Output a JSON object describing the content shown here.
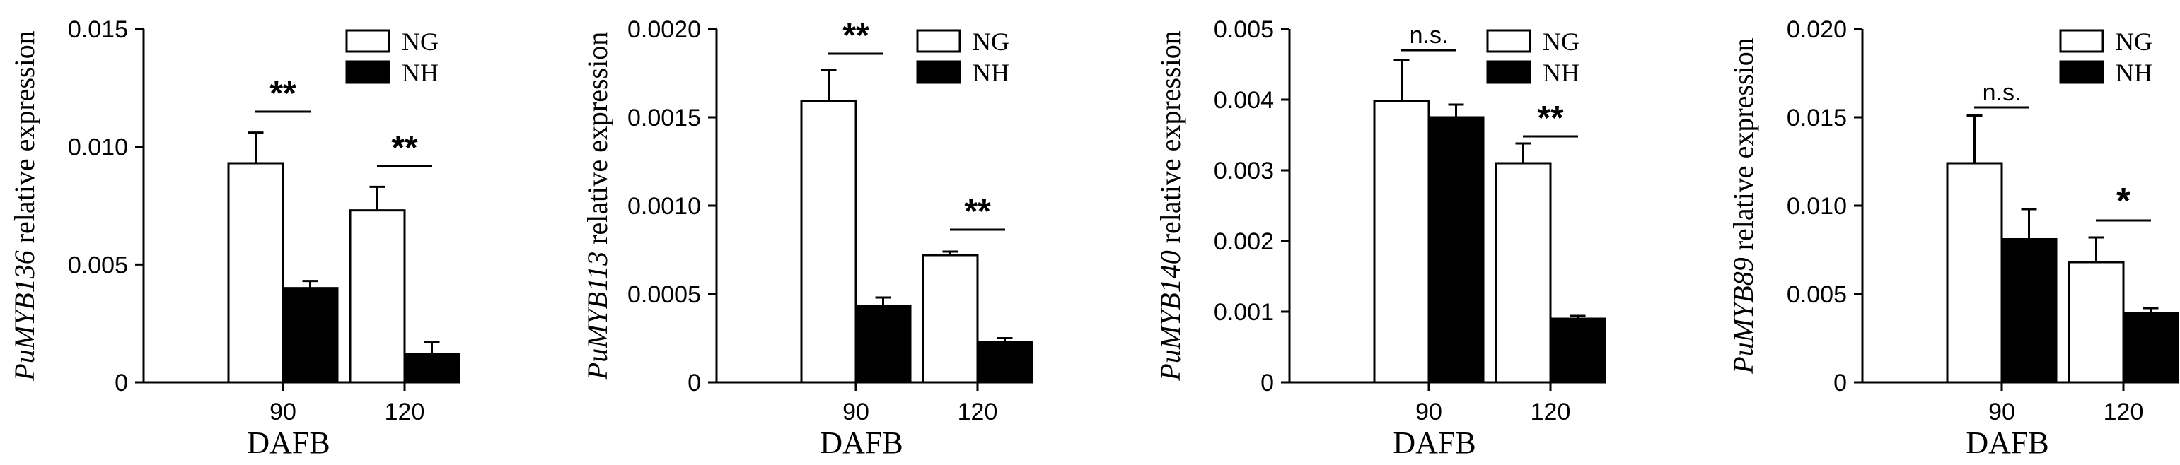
{
  "colors": {
    "NG": "#ffffff",
    "NH": "#000000",
    "stroke": "#000000"
  },
  "chart_data": [
    {
      "type": "bar",
      "ylabel_gene": "PuMYB136",
      "ylabel_rest": " relative expression",
      "xlabel": "DAFB",
      "categories": [
        "90",
        "120"
      ],
      "ylim": [
        0,
        0.015
      ],
      "yticks": [
        "0",
        "0.005",
        "0.010",
        "0.015"
      ],
      "legend_position": "top-right",
      "series": [
        {
          "name": "NG",
          "values": [
            0.0093,
            0.0073
          ],
          "errors": [
            0.0013,
            0.001
          ]
        },
        {
          "name": "NH",
          "values": [
            0.004,
            0.0012
          ],
          "errors": [
            0.0003,
            0.0005
          ]
        }
      ],
      "significance": [
        "**",
        "**"
      ]
    },
    {
      "type": "bar",
      "ylabel_gene": "PuMYB113",
      "ylabel_rest": " relative expression",
      "xlabel": "DAFB",
      "categories": [
        "90",
        "120"
      ],
      "ylim": [
        0,
        0.002
      ],
      "yticks": [
        "0",
        "0.0005",
        "0.0010",
        "0.0015",
        "0.0020"
      ],
      "legend_position": "top-right",
      "series": [
        {
          "name": "NG",
          "values": [
            0.00159,
            0.00072
          ],
          "errors": [
            0.00018,
            2e-05
          ]
        },
        {
          "name": "NH",
          "values": [
            0.00043,
            0.00023
          ],
          "errors": [
            5e-05,
            2e-05
          ]
        }
      ],
      "significance": [
        "**",
        "**"
      ]
    },
    {
      "type": "bar",
      "ylabel_gene": "PuMYB140",
      "ylabel_rest": " relative expression",
      "xlabel": "DAFB",
      "categories": [
        "90",
        "120"
      ],
      "ylim": [
        0,
        0.005
      ],
      "yticks": [
        "0",
        "0.001",
        "0.002",
        "0.003",
        "0.004",
        "0.005"
      ],
      "legend_position": "top-right",
      "series": [
        {
          "name": "NG",
          "values": [
            0.00398,
            0.0031
          ],
          "errors": [
            0.00058,
            0.00028
          ]
        },
        {
          "name": "NH",
          "values": [
            0.00375,
            0.0009
          ],
          "errors": [
            0.00018,
            4e-05
          ]
        }
      ],
      "significance": [
        "n.s.",
        "**"
      ]
    },
    {
      "type": "bar",
      "ylabel_gene": "PuMYB89",
      "ylabel_rest": " relative expression",
      "xlabel": "DAFB",
      "categories": [
        "90",
        "120"
      ],
      "ylim": [
        0,
        0.02
      ],
      "yticks": [
        "0",
        "0.005",
        "0.010",
        "0.015",
        "0.020"
      ],
      "legend_position": "top-right",
      "series": [
        {
          "name": "NG",
          "values": [
            0.0124,
            0.0068
          ],
          "errors": [
            0.0027,
            0.0014
          ]
        },
        {
          "name": "NH",
          "values": [
            0.0081,
            0.0039
          ],
          "errors": [
            0.0017,
            0.0003
          ]
        }
      ],
      "significance": [
        "n.s.",
        "*"
      ]
    }
  ]
}
